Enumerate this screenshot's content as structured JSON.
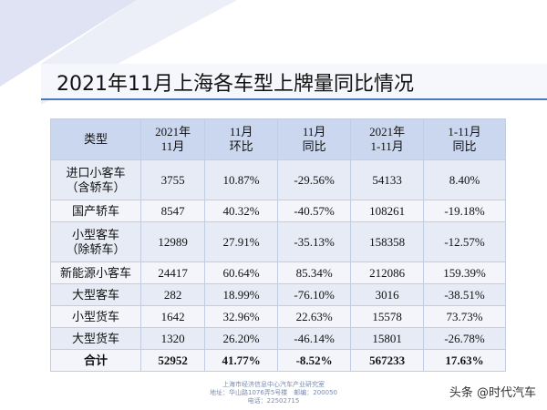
{
  "title": "2021年11月上海各车型上牌量同比情况",
  "table": {
    "header": [
      [
        "类型"
      ],
      [
        "2021年",
        "11月"
      ],
      [
        "11月",
        "环比"
      ],
      [
        "11月",
        "同比"
      ],
      [
        "2021年",
        "1-11月"
      ],
      [
        "1-11月",
        "同比"
      ]
    ],
    "rows": [
      [
        [
          "进口小客车",
          "（含轿车）"
        ],
        "3755",
        "10.87%",
        "-29.56%",
        "54133",
        "8.40%"
      ],
      [
        [
          "国产轿车"
        ],
        "8547",
        "40.32%",
        "-40.57%",
        "108261",
        "-19.18%"
      ],
      [
        [
          "小型客车",
          "（除轿车）"
        ],
        "12989",
        "27.91%",
        "-35.13%",
        "158358",
        "-12.57%"
      ],
      [
        [
          "新能源小客车"
        ],
        "24417",
        "60.64%",
        "85.34%",
        "212086",
        "159.39%"
      ],
      [
        [
          "大型客车"
        ],
        "282",
        "18.99%",
        "-76.10%",
        "3016",
        "-38.51%"
      ],
      [
        [
          "小型货车"
        ],
        "1642",
        "32.96%",
        "22.63%",
        "15578",
        "73.73%"
      ],
      [
        [
          "大型货车"
        ],
        "1320",
        "26.20%",
        "-46.14%",
        "15801",
        "-26.78%"
      ],
      [
        [
          "合计"
        ],
        "52952",
        "41.77%",
        "-8.52%",
        "567233",
        "17.63%"
      ]
    ]
  },
  "footer": [
    "上海市经济信息中心汽车产业研究室",
    "地址：华山路1076弄5号楼　邮编：200050",
    "电话：22502715"
  ],
  "watermark": "头条 @时代汽车"
}
